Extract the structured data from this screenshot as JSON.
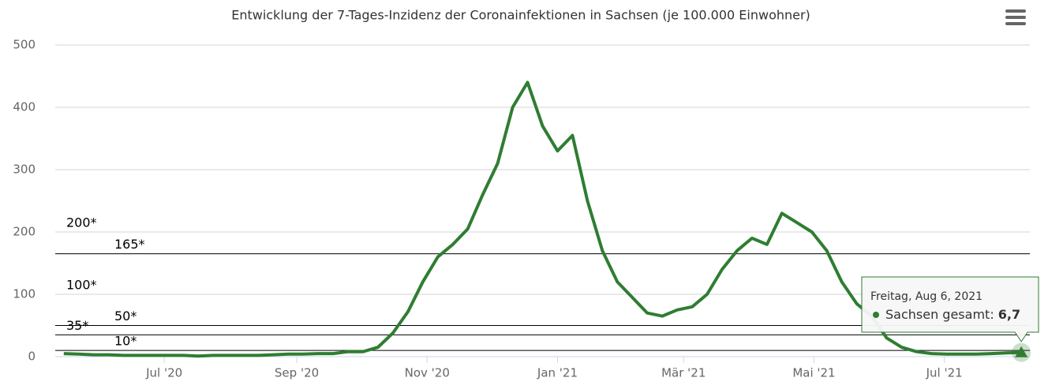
{
  "chart_data": {
    "type": "line",
    "title": "Entwicklung der 7-Tages-Inzidenz der Coronainfektionen in Sachsen (je 100.000 Einwohner)",
    "x": [
      "2020-05-15",
      "2020-05-22",
      "2020-05-29",
      "2020-06-05",
      "2020-06-12",
      "2020-06-19",
      "2020-06-26",
      "2020-07-03",
      "2020-07-10",
      "2020-07-17",
      "2020-07-24",
      "2020-07-31",
      "2020-08-07",
      "2020-08-14",
      "2020-08-21",
      "2020-08-28",
      "2020-09-04",
      "2020-09-11",
      "2020-09-18",
      "2020-09-25",
      "2020-10-02",
      "2020-10-09",
      "2020-10-16",
      "2020-10-23",
      "2020-10-30",
      "2020-11-06",
      "2020-11-13",
      "2020-11-20",
      "2020-11-27",
      "2020-12-04",
      "2020-12-11",
      "2020-12-18",
      "2020-12-25",
      "2021-01-01",
      "2021-01-08",
      "2021-01-15",
      "2021-01-22",
      "2021-01-29",
      "2021-02-05",
      "2021-02-12",
      "2021-02-19",
      "2021-02-26",
      "2021-03-05",
      "2021-03-12",
      "2021-03-19",
      "2021-03-26",
      "2021-04-02",
      "2021-04-09",
      "2021-04-16",
      "2021-04-23",
      "2021-04-30",
      "2021-05-07",
      "2021-05-14",
      "2021-05-21",
      "2021-05-28",
      "2021-06-04",
      "2021-06-11",
      "2021-06-18",
      "2021-06-25",
      "2021-07-02",
      "2021-07-09",
      "2021-07-16",
      "2021-07-23",
      "2021-07-30",
      "2021-08-06"
    ],
    "series": [
      {
        "name": "Sachsen gesamt",
        "color": "#2f7d32",
        "values": [
          5,
          4,
          3,
          3,
          2,
          2,
          2,
          2,
          2,
          1,
          2,
          2,
          2,
          2,
          3,
          4,
          4,
          5,
          5,
          8,
          8,
          15,
          38,
          72,
          120,
          160,
          180,
          205,
          260,
          310,
          400,
          440,
          370,
          330,
          355,
          250,
          170,
          120,
          95,
          70,
          65,
          75,
          80,
          100,
          140,
          170,
          190,
          180,
          230,
          215,
          200,
          170,
          120,
          85,
          65,
          30,
          15,
          8,
          5,
          4,
          4,
          4,
          5,
          6,
          6.7
        ]
      }
    ],
    "xlim": [
      "2020-05-11",
      "2021-08-10"
    ],
    "xticks": [
      {
        "value": "2020-07-01",
        "label": "Jul '20"
      },
      {
        "value": "2020-09-01",
        "label": "Sep '20"
      },
      {
        "value": "2020-11-01",
        "label": "Nov '20"
      },
      {
        "value": "2021-01-01",
        "label": "Jan '21"
      },
      {
        "value": "2021-03-01",
        "label": "Mär '21"
      },
      {
        "value": "2021-05-01",
        "label": "Mai '21"
      },
      {
        "value": "2021-07-01",
        "label": "Jul '21"
      }
    ],
    "ylim": [
      0,
      500
    ],
    "yticks": [
      0,
      100,
      200,
      300,
      400,
      500
    ],
    "grid": true,
    "plot_lines": [
      {
        "value": 200,
        "label": "200*"
      },
      {
        "value": 165,
        "label": "165*"
      },
      {
        "value": 100,
        "label": "100*"
      },
      {
        "value": 50,
        "label": "50*"
      },
      {
        "value": 35,
        "label": "35*"
      },
      {
        "value": 10,
        "label": "10*"
      }
    ],
    "tooltip": {
      "title": "Freitag, Aug 6, 2021",
      "series": "Sachsen gesamt",
      "value": 6.7,
      "label": "6,7"
    }
  }
}
